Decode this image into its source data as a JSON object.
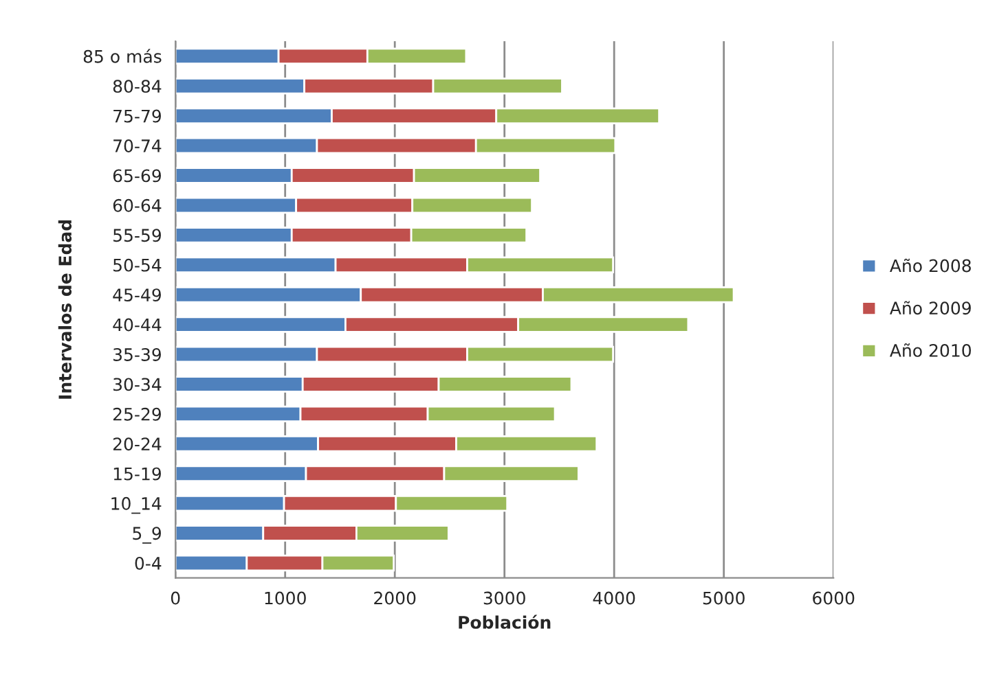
{
  "chart_data": {
    "type": "bar",
    "orientation": "horizontal",
    "stacked": true,
    "xlabel": "Población",
    "ylabel": "Intervalos de Edad",
    "categories": [
      "85 o más",
      "80-84",
      "75-79",
      "70-74",
      "65-69",
      "60-64",
      "55-59",
      "50-54",
      "45-49",
      "40-44",
      "35-39",
      "30-34",
      "25-29",
      "20-24",
      "15-19",
      "10_14",
      "5_9",
      "0-4"
    ],
    "series": [
      {
        "name": "Año 2008",
        "color": "#4f81bd",
        "values": [
          940,
          1175,
          1425,
          1290,
          1060,
          1100,
          1060,
          1460,
          1690,
          1550,
          1290,
          1160,
          1140,
          1300,
          1190,
          990,
          800,
          650
        ]
      },
      {
        "name": "Año 2009",
        "color": "#c0504d",
        "values": [
          810,
          1175,
          1500,
          1450,
          1115,
          1060,
          1090,
          1200,
          1660,
          1575,
          1370,
          1240,
          1160,
          1260,
          1260,
          1020,
          850,
          690
        ]
      },
      {
        "name": "Año 2010",
        "color": "#9bbb59",
        "values": [
          900,
          1175,
          1485,
          1270,
          1150,
          1090,
          1050,
          1330,
          1740,
          1550,
          1330,
          1210,
          1160,
          1280,
          1225,
          1015,
          840,
          650
        ]
      }
    ],
    "xlim": [
      0,
      6000
    ],
    "xticks": [
      0,
      1000,
      2000,
      3000,
      4000,
      5000,
      6000
    ],
    "grid": "x",
    "legend": "right"
  }
}
